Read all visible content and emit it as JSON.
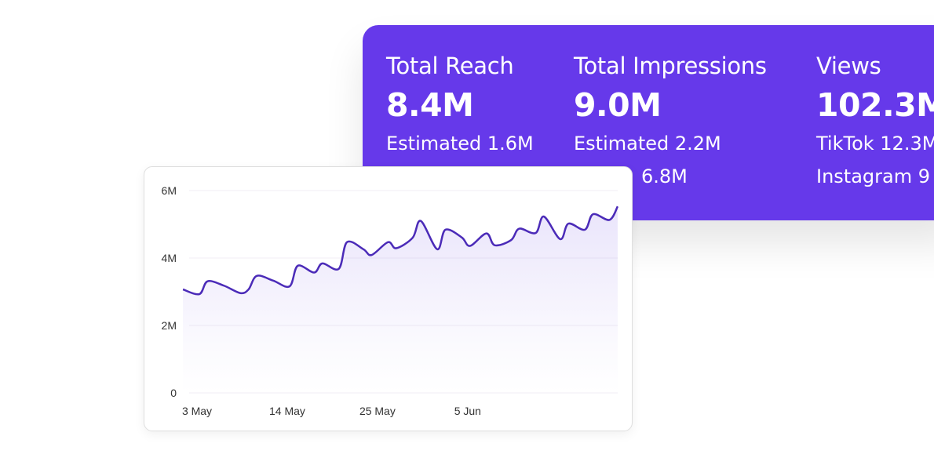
{
  "stats_card": {
    "background": "#6639EA",
    "columns": [
      {
        "label": "Total Reach",
        "value": "8.4M",
        "lines": [
          "Estimated 1.6M"
        ]
      },
      {
        "label": "Total Impressions",
        "value": "9.0M",
        "lines": [
          "Estimated 2.2M",
          "6.8M"
        ]
      },
      {
        "label": "Views",
        "value": "102.3M",
        "lines": [
          "TikTok 12.3M",
          "Instagram 9"
        ]
      }
    ]
  },
  "chart_data": {
    "type": "area",
    "line_color": "#4B2BB8",
    "y_ticks": [
      "0",
      "2M",
      "4M",
      "6M"
    ],
    "ylim": [
      0,
      6000000
    ],
    "x_ticks": [
      "3 May",
      "14 May",
      "25 May",
      "5 Jun"
    ],
    "grid": true,
    "points": [
      [
        "1 May",
        3070000
      ],
      [
        "3 May",
        2930000
      ],
      [
        "4 May",
        3310000
      ],
      [
        "6 May",
        3180000
      ],
      [
        "8 May",
        2960000
      ],
      [
        "9 May",
        3070000
      ],
      [
        "10 May",
        3470000
      ],
      [
        "12 May",
        3330000
      ],
      [
        "14 May",
        3160000
      ],
      [
        "15 May",
        3770000
      ],
      [
        "17 May",
        3570000
      ],
      [
        "18 May",
        3840000
      ],
      [
        "20 May",
        3680000
      ],
      [
        "21 May",
        4470000
      ],
      [
        "23 May",
        4260000
      ],
      [
        "24 May",
        4090000
      ],
      [
        "26 May",
        4470000
      ],
      [
        "27 May",
        4290000
      ],
      [
        "29 May",
        4600000
      ],
      [
        "30 May",
        5100000
      ],
      [
        "1 Jun",
        4260000
      ],
      [
        "2 Jun",
        4840000
      ],
      [
        "4 Jun",
        4610000
      ],
      [
        "5 Jun",
        4360000
      ],
      [
        "7 Jun",
        4730000
      ],
      [
        "8 Jun",
        4380000
      ],
      [
        "10 Jun",
        4530000
      ],
      [
        "11 Jun",
        4870000
      ],
      [
        "13 Jun",
        4740000
      ],
      [
        "14 Jun",
        5230000
      ],
      [
        "16 Jun",
        4560000
      ],
      [
        "17 Jun",
        5020000
      ],
      [
        "19 Jun",
        4840000
      ],
      [
        "20 Jun",
        5300000
      ],
      [
        "22 Jun",
        5130000
      ],
      [
        "23 Jun",
        5530000
      ]
    ]
  }
}
